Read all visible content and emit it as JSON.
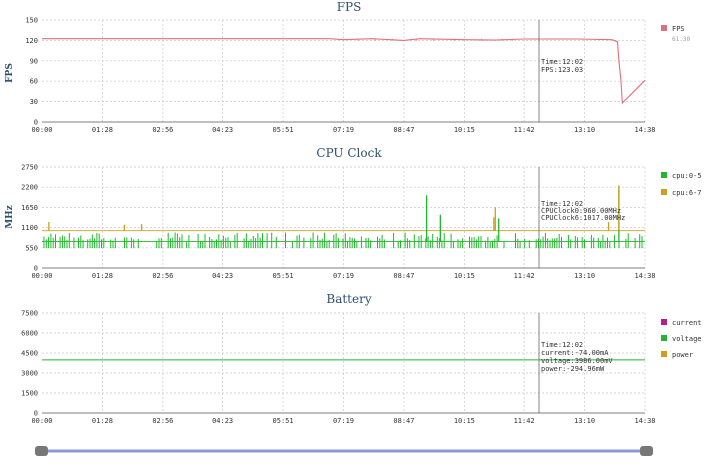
{
  "x_ticks": [
    "00:00",
    "01:28",
    "02:56",
    "04:23",
    "05:51",
    "07:19",
    "08:47",
    "10:15",
    "11:42",
    "13:10",
    "14:38"
  ],
  "colors": {
    "fps": "#e0707e",
    "cpu_0_5": "#1fb82a",
    "cpu_6_7": "#c9a021",
    "current": "#b0208d",
    "voltage": "#27b136",
    "power": "#c9a021",
    "slider": "#8b9bd9",
    "handle": "#777777"
  },
  "chart_data": [
    {
      "type": "line",
      "title": "FPS",
      "ylabel": "FPS",
      "ylim": [
        0,
        150
      ],
      "y_ticks": [
        "0",
        "30",
        "60",
        "90",
        "120",
        "150"
      ],
      "grid": true,
      "legend_position": "right",
      "series": [
        {
          "name": "FPS",
          "legend_value": "61.30",
          "x": [
            "00:00",
            "07:00",
            "07:19",
            "08:00",
            "08:47",
            "09:10",
            "10:15",
            "11:00",
            "11:42",
            "13:00",
            "13:50",
            "13:58",
            "14:00",
            "14:03",
            "14:05",
            "14:38"
          ],
          "values": [
            122.5,
            122.5,
            121,
            122.5,
            120,
            122.5,
            121,
            120.5,
            122,
            122,
            121,
            118,
            90,
            60,
            28,
            61.3
          ]
        }
      ],
      "tooltip": {
        "time": "Time:12:02",
        "lines": [
          "FPS:123.03"
        ]
      }
    },
    {
      "type": "bar",
      "title": "CPU Clock",
      "ylabel": "MHz",
      "ylim": [
        0,
        2750
      ],
      "y_ticks": [
        "0",
        "550",
        "1100",
        "1650",
        "2200",
        "2750"
      ],
      "grid": true,
      "legend_position": "right",
      "series": [
        {
          "name": "cpu:0-5",
          "baseline": 720,
          "spikes": [
            {
              "x": "09:20",
              "value": 1980
            },
            {
              "x": "09:40",
              "value": 1450
            },
            {
              "x": "11:05",
              "value": 1350
            },
            {
              "x": "14:00",
              "value": 2220
            }
          ]
        },
        {
          "name": "cpu:6-7",
          "baseline": 1017,
          "spikes": [
            {
              "x": "00:10",
              "value": 1250
            },
            {
              "x": "02:00",
              "value": 1180
            },
            {
              "x": "02:25",
              "value": 1200
            },
            {
              "x": "10:58",
              "value": 1380
            },
            {
              "x": "11:00",
              "value": 1650
            },
            {
              "x": "13:45",
              "value": 1250
            },
            {
              "x": "14:00",
              "value": 2250
            }
          ]
        }
      ],
      "tooltip": {
        "time": "Time:12:02",
        "lines": [
          "CPUClock0:960.00MHz",
          "CPUClock6:1017.00MHz"
        ]
      }
    },
    {
      "type": "line",
      "title": "Battery",
      "ylim": [
        0,
        7500
      ],
      "y_ticks": [
        "0",
        "1500",
        "3000",
        "4500",
        "6000",
        "7500"
      ],
      "grid": true,
      "legend_position": "right",
      "series": [
        {
          "name": "current",
          "values": []
        },
        {
          "name": "voltage",
          "x": [
            "00:00",
            "14:38"
          ],
          "values": [
            3986,
            3986
          ]
        },
        {
          "name": "power",
          "values": []
        }
      ],
      "tooltip": {
        "time": "Time:12:02",
        "lines": [
          "current:-74.00mA",
          "voltage:3986.00mV",
          "power:-294.96mW"
        ]
      }
    }
  ],
  "cursor_time": "12:02",
  "slider": {
    "start": 0,
    "end": 1
  }
}
